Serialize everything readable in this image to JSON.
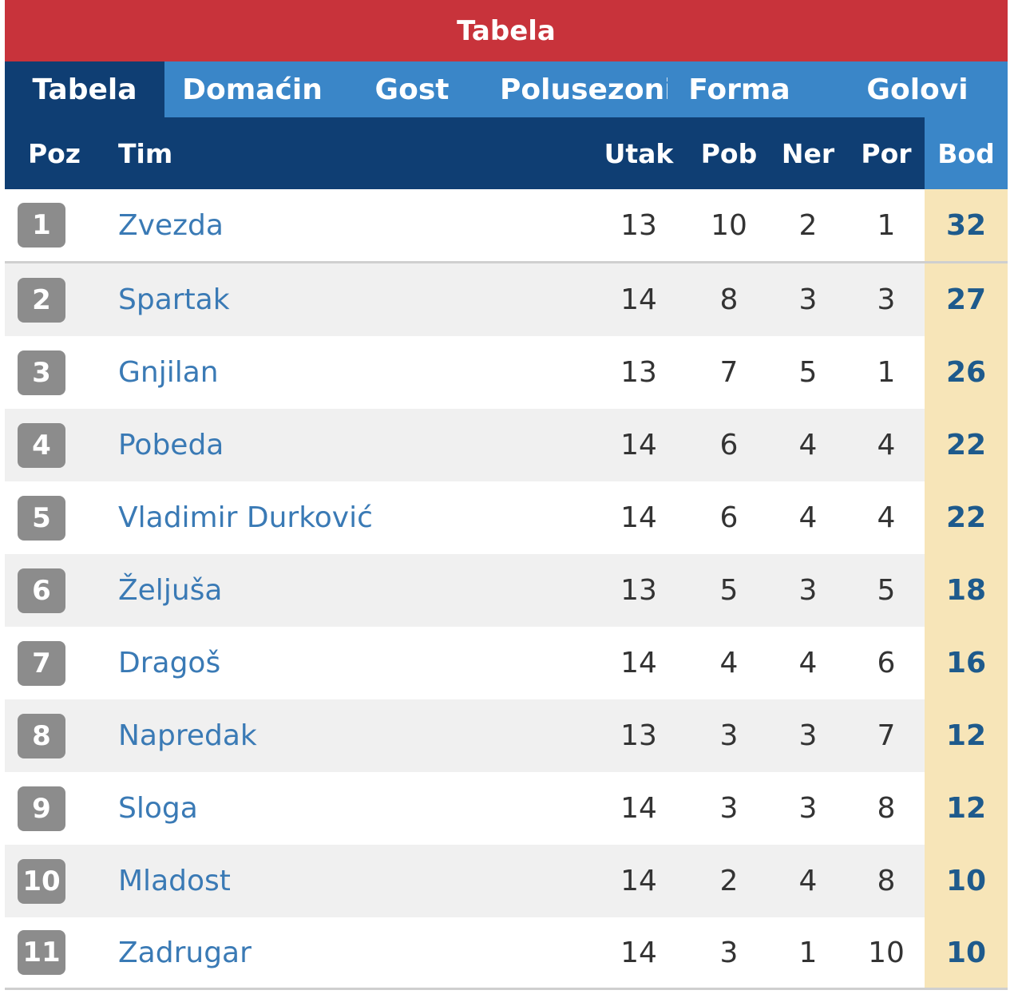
{
  "title": "Tabela",
  "tabs": [
    "Tabela",
    "Domaćin",
    "Gost",
    "Polusezoni",
    "Forma",
    "Golovi"
  ],
  "table": {
    "columns": [
      "Poz",
      "Tim",
      "Utak",
      "Pob",
      "Ner",
      "Por",
      "Bod"
    ],
    "rows": [
      [
        "1",
        "Zvezda",
        "13",
        "10",
        "2",
        "1",
        "32"
      ],
      [
        "2",
        "Spartak",
        "14",
        "8",
        "3",
        "3",
        "27"
      ],
      [
        "3",
        "Gnjilan",
        "13",
        "7",
        "5",
        "1",
        "26"
      ],
      [
        "4",
        "Pobeda",
        "14",
        "6",
        "4",
        "4",
        "22"
      ],
      [
        "5",
        "Vladimir Durković",
        "14",
        "6",
        "4",
        "4",
        "22"
      ],
      [
        "6",
        "Željuša",
        "13",
        "5",
        "3",
        "5",
        "18"
      ],
      [
        "7",
        "Dragoš",
        "14",
        "4",
        "4",
        "6",
        "16"
      ],
      [
        "8",
        "Napredak",
        "13",
        "3",
        "3",
        "7",
        "12"
      ],
      [
        "9",
        "Sloga",
        "14",
        "3",
        "3",
        "8",
        "12"
      ],
      [
        "10",
        "Mladost",
        "14",
        "2",
        "4",
        "8",
        "10"
      ],
      [
        "11",
        "Zadrugar",
        "14",
        "3",
        "1",
        "10",
        "10"
      ]
    ]
  }
}
